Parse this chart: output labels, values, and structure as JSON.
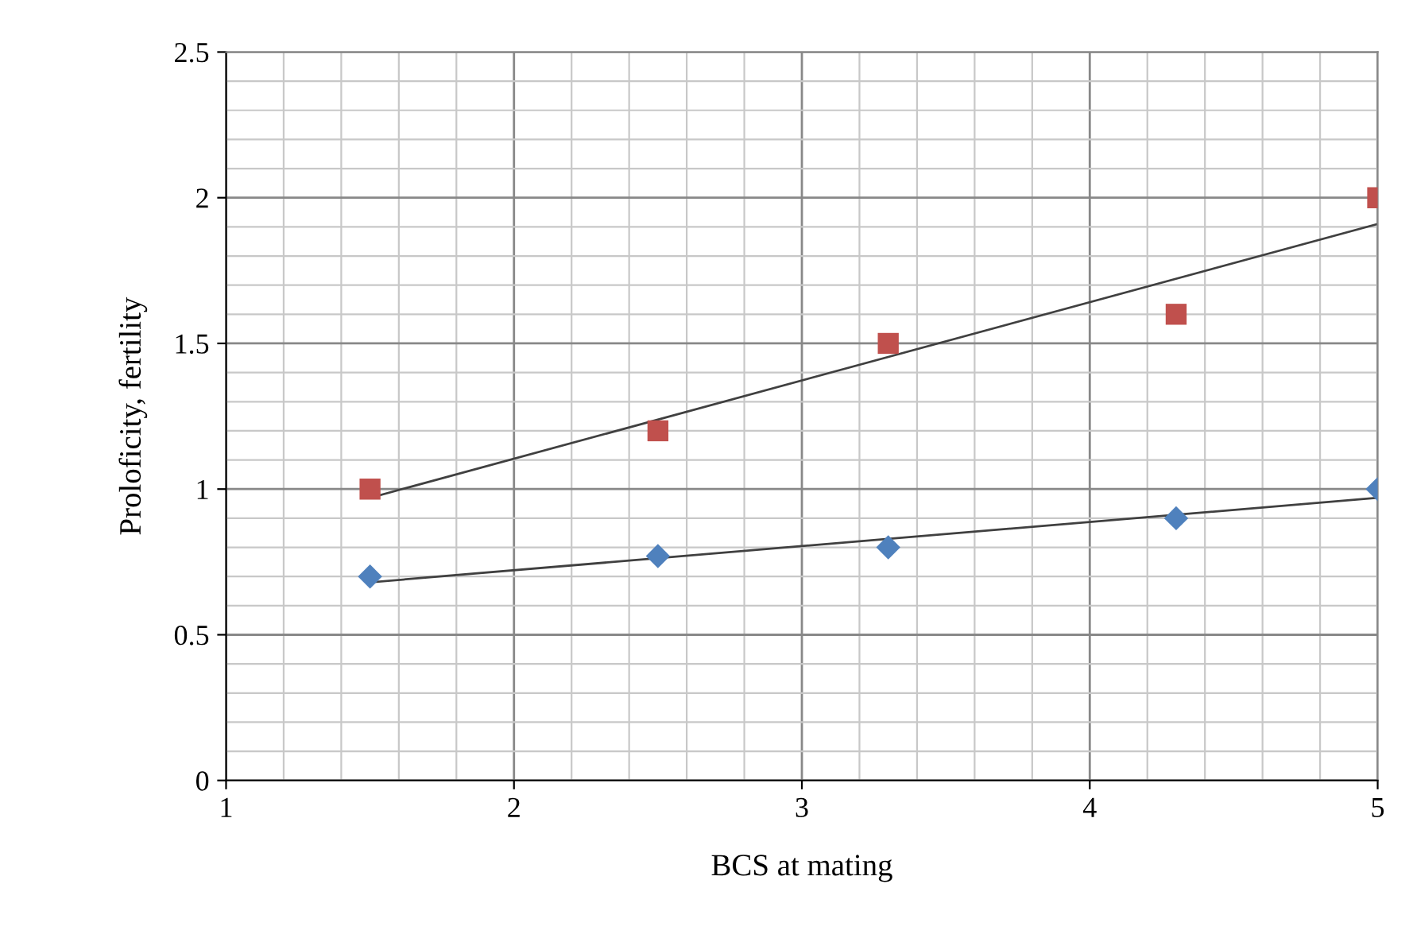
{
  "chart_data": {
    "type": "scatter",
    "xlabel": "BCS at mating",
    "ylabel": "Proloficity, fertility",
    "xlim": [
      1,
      5
    ],
    "xticks": [
      1,
      2,
      3,
      4,
      5
    ],
    "ylim": [
      0,
      2.5
    ],
    "yticks": [
      0,
      {
        "value": 0.5,
        "label": "0.5"
      },
      1,
      {
        "value": 1.5,
        "label": "1.5"
      },
      2,
      {
        "value": 2.5,
        "label": "2.5"
      }
    ],
    "grid": true,
    "legend": false,
    "series": [
      {
        "marker": "diamond",
        "color": "#4f81bd",
        "x": [
          1.5,
          2.5,
          3.3,
          4.3,
          5
        ],
        "values": [
          0.7,
          0.77,
          0.8,
          0.9,
          1.0
        ]
      },
      {
        "marker": "square",
        "color": "#c0504d",
        "x": [
          1.5,
          2.5,
          3.3,
          4.3,
          5
        ],
        "values": [
          1.0,
          1.2,
          1.5,
          1.6,
          2.0
        ]
      },
      {
        "type": "line",
        "marker": "none",
        "color": "#404040",
        "x": [
          1.5,
          5
        ],
        "values": [
          0.68,
          0.97
        ]
      },
      {
        "type": "line",
        "marker": "none",
        "color": "#404040",
        "x": [
          1.5,
          5
        ],
        "values": [
          0.97,
          1.91
        ]
      }
    ]
  }
}
